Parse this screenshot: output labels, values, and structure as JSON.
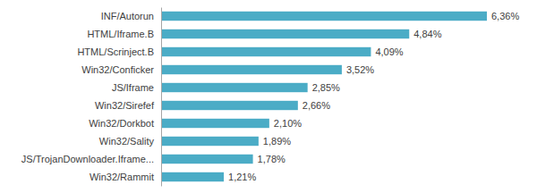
{
  "chart_data": {
    "type": "bar",
    "orientation": "horizontal",
    "categories": [
      "INF/Autorun",
      "HTML/Iframe.B",
      "HTML/Scrinject.B",
      "Win32/Conficker",
      "JS/Iframe",
      "Win32/Sirefef",
      "Win32/Dorkbot",
      "Win32/Sality",
      "JS/TrojanDownloader.Iframe...",
      "Win32/Rammit"
    ],
    "values": [
      6.36,
      4.84,
      4.09,
      3.52,
      2.85,
      2.66,
      2.1,
      1.89,
      1.78,
      1.21
    ],
    "value_labels": [
      "6,36%",
      "4,84%",
      "4,09%",
      "3,52%",
      "2,85%",
      "2,66%",
      "2,10%",
      "1,89%",
      "1,78%",
      "1,21%"
    ],
    "color": "#4bacc6",
    "xlim": [
      0,
      6.36
    ],
    "data_labels": true,
    "tick_labels": "y",
    "grid": false
  }
}
